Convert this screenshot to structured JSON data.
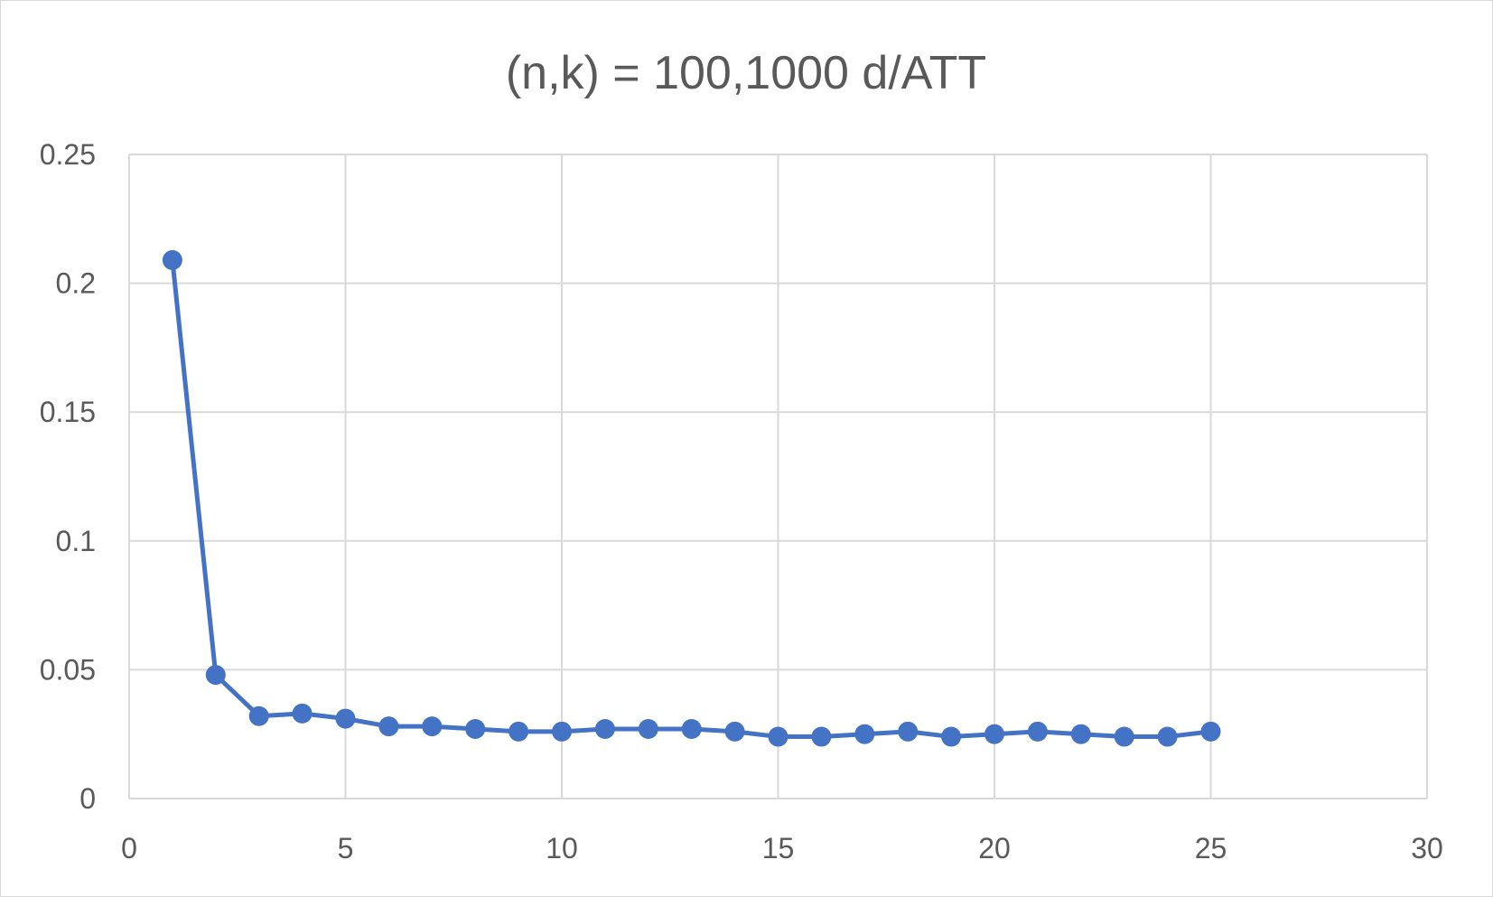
{
  "chart_data": {
    "type": "scatter",
    "title": "(n,k) = 100,1000 d/ATT",
    "xlabel": "",
    "ylabel": "",
    "xlim": [
      0,
      30
    ],
    "ylim": [
      0,
      0.25
    ],
    "x_ticks": [
      0,
      5,
      10,
      15,
      20,
      25,
      30
    ],
    "y_ticks": [
      0,
      0.05,
      0.1,
      0.15,
      0.2,
      0.25
    ],
    "x_tick_labels": [
      "0",
      "5",
      "10",
      "15",
      "20",
      "25",
      "30"
    ],
    "y_tick_labels": [
      "0",
      "0.05",
      "0.1",
      "0.15",
      "0.2",
      "0.25"
    ],
    "grid": true,
    "legend": "none",
    "series": [
      {
        "color": "#4472c4",
        "line": true,
        "markers": true,
        "x": [
          1,
          2,
          3,
          4,
          5,
          6,
          7,
          8,
          9,
          10,
          11,
          12,
          13,
          14,
          15,
          16,
          17,
          18,
          19,
          20,
          21,
          22,
          23,
          24,
          25
        ],
        "y": [
          0.209,
          0.048,
          0.032,
          0.033,
          0.031,
          0.028,
          0.028,
          0.027,
          0.026,
          0.026,
          0.027,
          0.027,
          0.027,
          0.026,
          0.024,
          0.024,
          0.025,
          0.026,
          0.024,
          0.025,
          0.026,
          0.025,
          0.024,
          0.024,
          0.026
        ]
      }
    ]
  }
}
